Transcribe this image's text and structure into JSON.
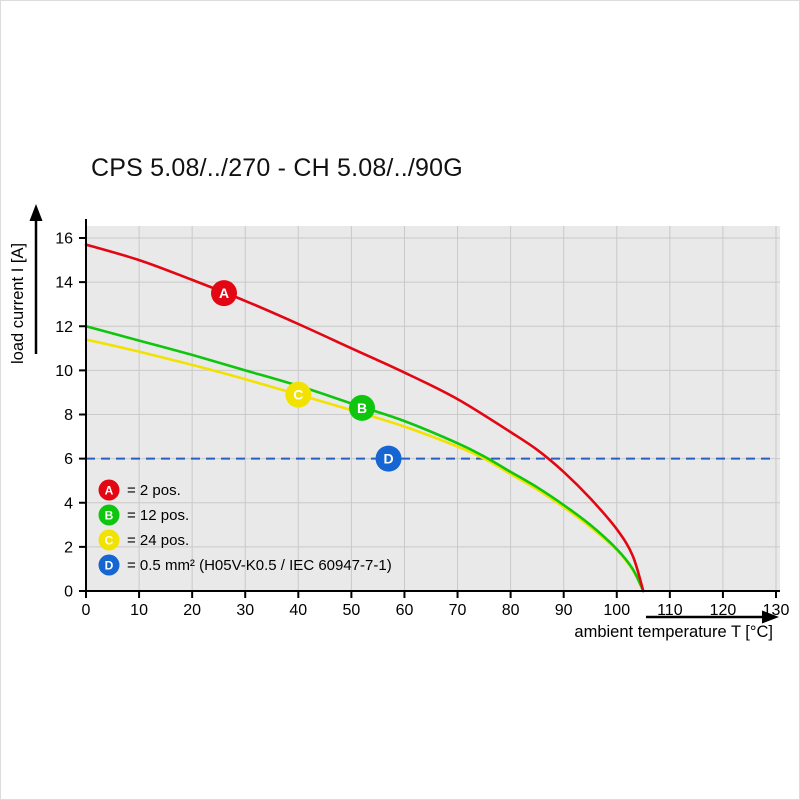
{
  "title": "CPS 5.08/../270 - CH 5.08/../90G",
  "chart_data": {
    "type": "line",
    "title": "CPS 5.08/../270 - CH 5.08/../90G",
    "xlabel": "ambient temperature T [°C]",
    "ylabel": "load current I [A]",
    "xlim": [
      0,
      130
    ],
    "ylim": [
      0,
      16
    ],
    "xticks": [
      0,
      10,
      20,
      30,
      40,
      50,
      60,
      70,
      80,
      90,
      100,
      110,
      120,
      130
    ],
    "yticks": [
      0,
      2,
      4,
      6,
      8,
      10,
      12,
      14,
      16
    ],
    "grid": true,
    "plot_bg": "#e9e9e9",
    "grid_color": "#c9c9c9",
    "axis_color": "#000000",
    "series": [
      {
        "name": "A",
        "label": "2 pos.",
        "color": "#e30613",
        "marker_at": [
          26,
          13.5
        ],
        "points": [
          [
            0,
            15.7
          ],
          [
            10,
            15.0
          ],
          [
            20,
            14.1
          ],
          [
            30,
            13.15
          ],
          [
            40,
            12.1
          ],
          [
            50,
            11.0
          ],
          [
            60,
            9.9
          ],
          [
            70,
            8.7
          ],
          [
            80,
            7.2
          ],
          [
            85,
            6.4
          ],
          [
            90,
            5.4
          ],
          [
            95,
            4.2
          ],
          [
            100,
            2.8
          ],
          [
            103,
            1.6
          ],
          [
            105,
            0
          ]
        ]
      },
      {
        "name": "B",
        "label": "12 pos.",
        "color": "#0fc60f",
        "marker_at": [
          52,
          8.3
        ],
        "points": [
          [
            0,
            12.0
          ],
          [
            10,
            11.35
          ],
          [
            20,
            10.7
          ],
          [
            30,
            10.0
          ],
          [
            40,
            9.3
          ],
          [
            50,
            8.5
          ],
          [
            60,
            7.7
          ],
          [
            70,
            6.7
          ],
          [
            75,
            6.1
          ],
          [
            80,
            5.4
          ],
          [
            85,
            4.7
          ],
          [
            90,
            3.9
          ],
          [
            95,
            3.0
          ],
          [
            100,
            1.9
          ],
          [
            103,
            1.0
          ],
          [
            105,
            0
          ]
        ]
      },
      {
        "name": "C",
        "label": "24 pos.",
        "color": "#f2e200",
        "marker_at": [
          40,
          8.9
        ],
        "points": [
          [
            0,
            11.4
          ],
          [
            10,
            10.85
          ],
          [
            20,
            10.25
          ],
          [
            30,
            9.6
          ],
          [
            40,
            8.9
          ],
          [
            50,
            8.2
          ],
          [
            60,
            7.45
          ],
          [
            70,
            6.55
          ],
          [
            75,
            6.0
          ],
          [
            80,
            5.3
          ],
          [
            85,
            4.6
          ],
          [
            90,
            3.8
          ],
          [
            95,
            2.9
          ],
          [
            100,
            1.85
          ],
          [
            103,
            0.95
          ],
          [
            105,
            0
          ]
        ]
      }
    ],
    "reference_line": {
      "name": "D",
      "value": 6,
      "color": "#2a5fc4",
      "style": "dashed",
      "marker_at": [
        57,
        6
      ]
    },
    "legend": [
      {
        "key": "A",
        "color": "#e30613",
        "text": "= 2 pos."
      },
      {
        "key": "B",
        "color": "#0fc60f",
        "text": "= 12 pos."
      },
      {
        "key": "C",
        "color": "#f2e200",
        "text": "= 24 pos."
      },
      {
        "key": "D",
        "color": "#1565d2",
        "text": "= 0.5 mm² (H05V-K0.5 / IEC 60947-7-1)"
      }
    ],
    "legend_position": "lower left",
    "marker_letter_color": "#ffffff"
  }
}
